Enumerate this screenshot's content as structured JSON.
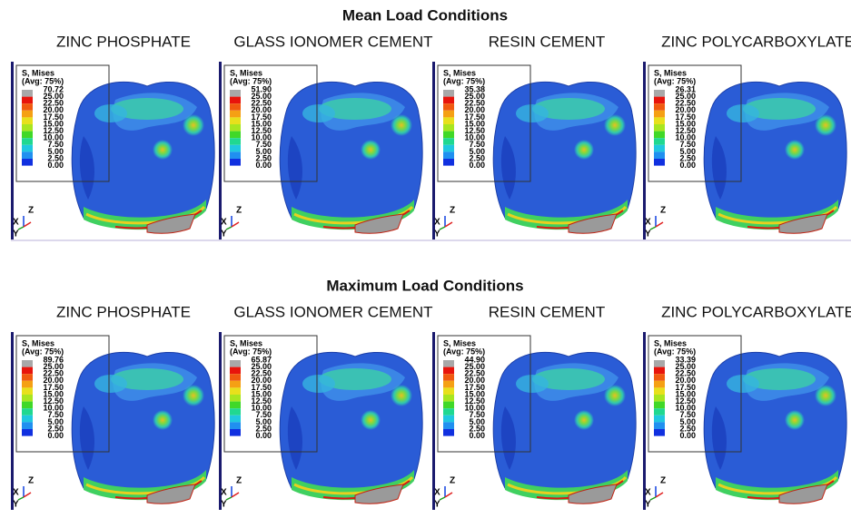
{
  "sections": [
    {
      "title": "Mean Load Conditions",
      "panels": [
        {
          "label": "ZINC PHOSPHATE",
          "legend": {
            "title": "S, Mises",
            "subtitle": "(Avg: 75%)",
            "levels": [
              "70.72",
              "25.00",
              "22.50",
              "20.00",
              "17.50",
              "15.00",
              "12.50",
              "10.00",
              "7.50",
              "5.00",
              "2.50",
              "0.00"
            ]
          }
        },
        {
          "label": "GLASS IONOMER CEMENT",
          "legend": {
            "title": "S, Mises",
            "subtitle": "(Avg: 75%)",
            "levels": [
              "51.90",
              "25.00",
              "22.50",
              "20.00",
              "17.50",
              "15.00",
              "12.50",
              "10.00",
              "7.50",
              "5.00",
              "2.50",
              "0.00"
            ]
          }
        },
        {
          "label": "RESIN CEMENT",
          "legend": {
            "title": "S, Mises",
            "subtitle": "(Avg: 75%)",
            "levels": [
              "35.38",
              "25.00",
              "22.50",
              "20.00",
              "17.50",
              "15.00",
              "12.50",
              "10.00",
              "7.50",
              "5.00",
              "2.50",
              "0.00"
            ]
          }
        },
        {
          "label": "ZINC POLYCARBOXYLATE",
          "legend": {
            "title": "S, Mises",
            "subtitle": "(Avg: 75%)",
            "levels": [
              "26.31",
              "25.00",
              "22.50",
              "20.00",
              "17.50",
              "15.00",
              "12.50",
              "10.00",
              "7.50",
              "5.00",
              "2.50",
              "0.00"
            ]
          }
        }
      ]
    },
    {
      "title": "Maximum Load Conditions",
      "panels": [
        {
          "label": "ZINC PHOSPHATE",
          "legend": {
            "title": "S, Mises",
            "subtitle": "(Avg: 75%)",
            "levels": [
              "89.76",
              "25.00",
              "22.50",
              "20.00",
              "17.50",
              "15.00",
              "12.50",
              "10.00",
              "7.50",
              "5.00",
              "2.50",
              "0.00"
            ]
          }
        },
        {
          "label": "GLASS IONOMER CEMENT",
          "legend": {
            "title": "S, Mises",
            "subtitle": "(Avg: 75%)",
            "levels": [
              "65.87",
              "25.00",
              "22.50",
              "20.00",
              "17.50",
              "15.00",
              "12.50",
              "10.00",
              "7.50",
              "5.00",
              "2.50",
              "0.00"
            ]
          }
        },
        {
          "label": "RESIN CEMENT",
          "legend": {
            "title": "S, Mises",
            "subtitle": "(Avg: 75%)",
            "levels": [
              "44.90",
              "25.00",
              "22.50",
              "20.00",
              "17.50",
              "15.00",
              "12.50",
              "10.00",
              "7.50",
              "5.00",
              "2.50",
              "0.00"
            ]
          }
        },
        {
          "label": "ZINC POLYCARBOXYLATE",
          "legend": {
            "title": "S, Mises",
            "subtitle": "(Avg: 75%)",
            "levels": [
              "33.39",
              "25.00",
              "22.50",
              "20.00",
              "17.50",
              "15.00",
              "12.50",
              "10.00",
              "7.50",
              "5.00",
              "2.50",
              "0.00"
            ]
          }
        }
      ]
    }
  ],
  "triad": [
    "Z",
    "X",
    "Y"
  ]
}
